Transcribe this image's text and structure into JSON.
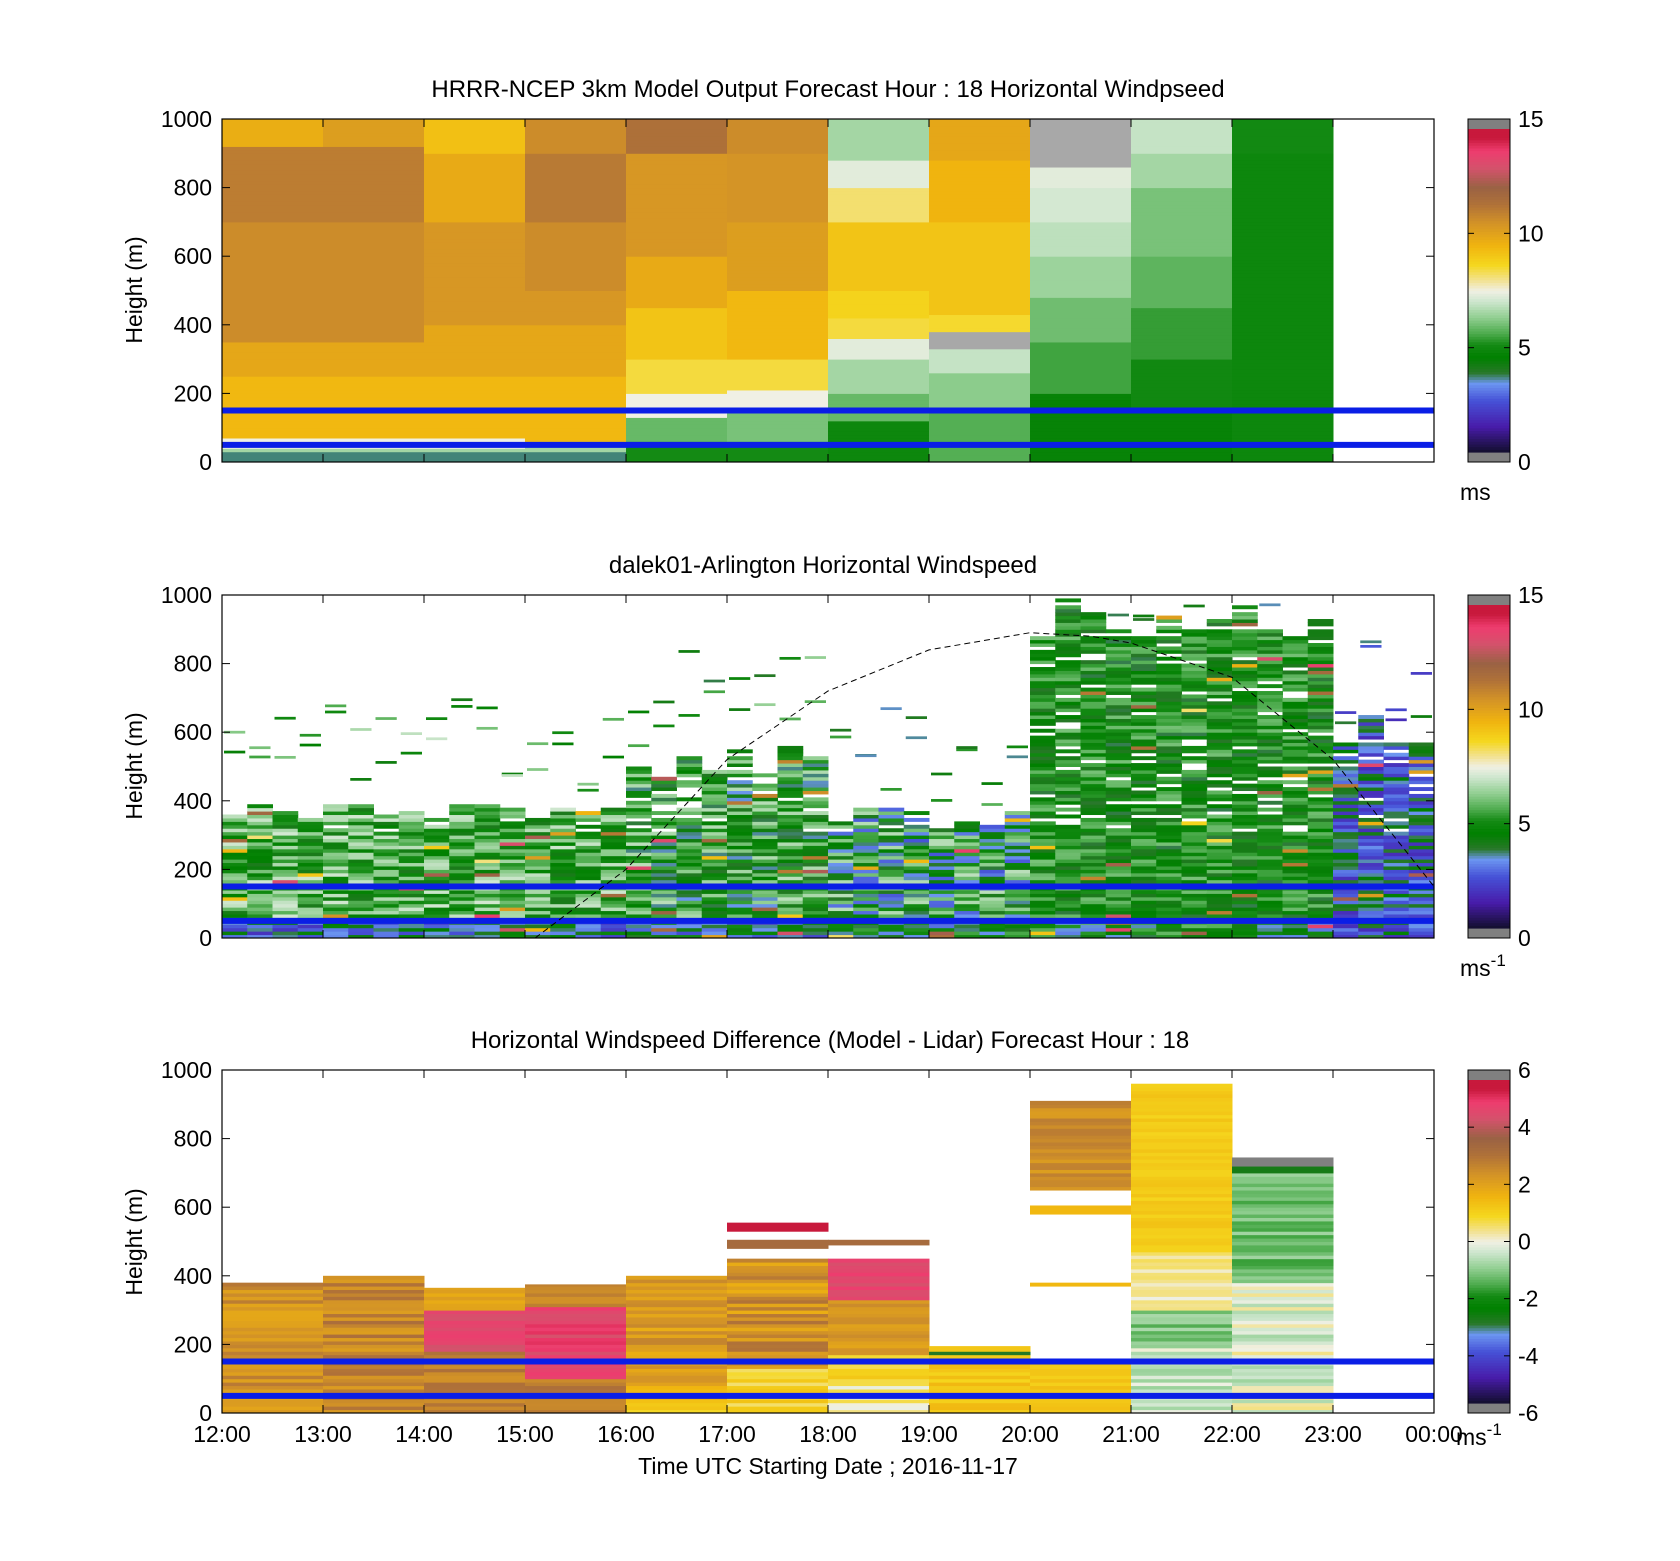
{
  "chart_data": [
    {
      "type": "heatmap",
      "title": "HRRR-NCEP 3km Model Output   Forecast Hour : 18 Horizontal Windpseed",
      "ylabel": "Height (m)",
      "ylim": [
        0,
        1000
      ],
      "yticks": [
        "0",
        "200",
        "400",
        "600",
        "800",
        "1000"
      ],
      "x_hours_range": [
        12,
        24
      ],
      "colorbar": {
        "min": 0,
        "max": 15,
        "ticks": [
          "0",
          "5",
          "10",
          "15"
        ],
        "unit": "ms",
        "unit_sup": ""
      },
      "reference_lines_m": [
        50,
        150
      ],
      "columns": [
        {
          "hour": 12,
          "top": 1000,
          "values": [
            {
              "z": 0,
              "v": 3.5
            },
            {
              "z": 25,
              "v": 6.5
            },
            {
              "z": 40,
              "v": 7.5
            },
            {
              "z": 70,
              "v": 9.5
            },
            {
              "z": 250,
              "v": 10
            },
            {
              "z": 350,
              "v": 10.8
            },
            {
              "z": 700,
              "v": 11.2
            },
            {
              "z": 920,
              "v": 9.8
            }
          ]
        },
        {
          "hour": 13,
          "top": 1000,
          "values": [
            {
              "z": 0,
              "v": 3.5
            },
            {
              "z": 25,
              "v": 6.5
            },
            {
              "z": 40,
              "v": 7.5
            },
            {
              "z": 70,
              "v": 9.5
            },
            {
              "z": 250,
              "v": 10
            },
            {
              "z": 350,
              "v": 10.8
            },
            {
              "z": 700,
              "v": 11.2
            },
            {
              "z": 920,
              "v": 10.3
            }
          ]
        },
        {
          "hour": 14,
          "top": 1000,
          "values": [
            {
              "z": 0,
              "v": 3.5
            },
            {
              "z": 25,
              "v": 6.5
            },
            {
              "z": 40,
              "v": 7.5
            },
            {
              "z": 70,
              "v": 9.5
            },
            {
              "z": 250,
              "v": 10
            },
            {
              "z": 400,
              "v": 10.5
            },
            {
              "z": 700,
              "v": 9.9
            },
            {
              "z": 900,
              "v": 9.3
            }
          ]
        },
        {
          "hour": 15,
          "top": 1000,
          "values": [
            {
              "z": 0,
              "v": 3.5
            },
            {
              "z": 25,
              "v": 6.5
            },
            {
              "z": 55,
              "v": 9.5
            },
            {
              "z": 250,
              "v": 10
            },
            {
              "z": 400,
              "v": 10.5
            },
            {
              "z": 500,
              "v": 10.8
            },
            {
              "z": 700,
              "v": 11.3
            },
            {
              "z": 900,
              "v": 10.8
            }
          ]
        },
        {
          "hour": 16,
          "top": 1000,
          "values": [
            {
              "z": 0,
              "v": 5.0
            },
            {
              "z": 60,
              "v": 5.8
            },
            {
              "z": 130,
              "v": 7.5
            },
            {
              "z": 200,
              "v": 8.5
            },
            {
              "z": 300,
              "v": 9.2
            },
            {
              "z": 450,
              "v": 9.9
            },
            {
              "z": 600,
              "v": 10.5
            },
            {
              "z": 900,
              "v": 11.6
            }
          ]
        },
        {
          "hour": 17,
          "top": 1000,
          "values": [
            {
              "z": 0,
              "v": 5.0
            },
            {
              "z": 60,
              "v": 6.0
            },
            {
              "z": 150,
              "v": 7.5
            },
            {
              "z": 210,
              "v": 8.5
            },
            {
              "z": 300,
              "v": 9.5
            },
            {
              "z": 500,
              "v": 10.3
            },
            {
              "z": 700,
              "v": 10.6
            },
            {
              "z": 900,
              "v": 10.8
            }
          ]
        },
        {
          "hour": 18,
          "top": 1000,
          "values": [
            {
              "z": 0,
              "v": 4.8
            },
            {
              "z": 120,
              "v": 5.8
            },
            {
              "z": 200,
              "v": 6.5
            },
            {
              "z": 300,
              "v": 7.3
            },
            {
              "z": 360,
              "v": 8.5
            },
            {
              "z": 420,
              "v": 8.8
            },
            {
              "z": 500,
              "v": 9.2
            },
            {
              "z": 700,
              "v": 8.2
            },
            {
              "z": 800,
              "v": 7.3
            },
            {
              "z": 880,
              "v": 6.5
            }
          ]
        },
        {
          "hour": 19,
          "top": 1000,
          "values": [
            {
              "z": 0,
              "v": 5.6
            },
            {
              "z": 150,
              "v": 6.2
            },
            {
              "z": 260,
              "v": 6.9
            },
            {
              "z": 330,
              "v": 16
            },
            {
              "z": 380,
              "v": 8.6
            },
            {
              "z": 430,
              "v": 9.2
            },
            {
              "z": 700,
              "v": 9.6
            },
            {
              "z": 880,
              "v": 10.0
            }
          ]
        },
        {
          "hour": 20,
          "top": 1000,
          "values": [
            {
              "z": 0,
              "v": 4.6
            },
            {
              "z": 200,
              "v": 5.4
            },
            {
              "z": 350,
              "v": 5.9
            },
            {
              "z": 480,
              "v": 6.4
            },
            {
              "z": 600,
              "v": 6.8
            },
            {
              "z": 700,
              "v": 7.1
            },
            {
              "z": 800,
              "v": 7.3
            },
            {
              "z": 860,
              "v": 16
            }
          ]
        },
        {
          "hour": 21,
          "top": 1000,
          "values": [
            {
              "z": 0,
              "v": 4.6
            },
            {
              "z": 150,
              "v": 4.9
            },
            {
              "z": 300,
              "v": 5.3
            },
            {
              "z": 450,
              "v": 5.7
            },
            {
              "z": 600,
              "v": 6.0
            },
            {
              "z": 800,
              "v": 6.5
            },
            {
              "z": 900,
              "v": 6.9
            }
          ]
        },
        {
          "hour": 22,
          "top": 1000,
          "values": [
            {
              "z": 0,
              "v": 4.8
            },
            {
              "z": 900,
              "v": 4.95
            },
            {
              "z": 1000,
              "v": 5.3
            }
          ]
        }
      ]
    },
    {
      "type": "heatmap",
      "title": "dalek01-Arlington  Horizontal Windspeed",
      "ylabel": "Height (m)",
      "ylim": [
        0,
        1000
      ],
      "yticks": [
        "0",
        "200",
        "400",
        "600",
        "800",
        "1000"
      ],
      "x_hours_range": [
        12,
        24
      ],
      "colorbar": {
        "min": 0,
        "max": 15,
        "ticks": [
          "0",
          "5",
          "10",
          "15"
        ],
        "unit": "ms",
        "unit_sup": "-1"
      },
      "reference_lines_m": [
        50,
        150
      ],
      "overlay_curve": {
        "description": "dashed boundary-layer height",
        "points": [
          [
            15.1,
            0
          ],
          [
            16,
            200
          ],
          [
            17,
            520
          ],
          [
            18,
            720
          ],
          [
            19,
            840
          ],
          [
            20,
            890
          ],
          [
            20.6,
            880
          ],
          [
            21,
            860
          ],
          [
            22,
            760
          ],
          [
            23,
            520
          ],
          [
            24,
            150
          ]
        ]
      },
      "segments": [
        {
          "h0": 12.0,
          "h1": 16.0,
          "top": 400,
          "base_v": 5.5,
          "spread": 1.6,
          "low_v": 3.2,
          "seed": 11
        },
        {
          "h0": 16.0,
          "h1": 18.0,
          "top": 560,
          "base_v": 5.0,
          "spread": 1.8,
          "low_v": 3.5,
          "seed": 23
        },
        {
          "h0": 18.0,
          "h1": 20.0,
          "top": 380,
          "base_v": 4.6,
          "spread": 2.2,
          "low_v": 4.0,
          "seed": 37
        },
        {
          "h0": 20.0,
          "h1": 23.0,
          "top": 990,
          "base_v": 4.8,
          "spread": 1.2,
          "low_v": 4.3,
          "seed": 41
        },
        {
          "h0": 23.0,
          "h1": 24.0,
          "top": 650,
          "base_v": 3.0,
          "spread": 1.5,
          "low_v": 3.0,
          "seed": 53
        }
      ]
    },
    {
      "type": "heatmap",
      "title": "Horizontal Windspeed Difference (Model - Lidar) Forecast Hour : 18",
      "ylabel": "Height (m)",
      "xlabel": "Time UTC  Starting Date ; 2016-11-17",
      "ylim": [
        0,
        1000
      ],
      "yticks": [
        "0",
        "200",
        "400",
        "600",
        "800",
        "1000"
      ],
      "xticks": [
        "12:00",
        "13:00",
        "14:00",
        "15:00",
        "16:00",
        "17:00",
        "18:00",
        "19:00",
        "20:00",
        "21:00",
        "22:00",
        "23:00",
        "00:00"
      ],
      "x_hours_range": [
        12,
        24
      ],
      "colorbar": {
        "min": -6,
        "max": 6,
        "ticks": [
          "-6",
          "-4",
          "-2",
          "0",
          "2",
          "4",
          "6"
        ],
        "unit": "ms",
        "unit_sup": "-1"
      },
      "reference_lines_m": [
        50,
        150
      ],
      "columns": [
        {
          "hour": 12,
          "bands": [
            {
              "z0": 0,
              "z1": 380,
              "v": 2.6,
              "j": 0.6
            }
          ]
        },
        {
          "hour": 13,
          "bands": [
            {
              "z0": 0,
              "z1": 400,
              "v": 2.8,
              "j": 0.6
            }
          ]
        },
        {
          "hour": 14,
          "bands": [
            {
              "z0": 0,
              "z1": 180,
              "v": 2.9,
              "j": 0.4
            },
            {
              "z0": 180,
              "z1": 300,
              "v": 4.8,
              "j": 0.3
            },
            {
              "z0": 300,
              "z1": 365,
              "v": 2.0,
              "j": 0.3
            }
          ]
        },
        {
          "hour": 15,
          "bands": [
            {
              "z0": 0,
              "z1": 100,
              "v": 3.0,
              "j": 0.4
            },
            {
              "z0": 100,
              "z1": 310,
              "v": 5.0,
              "j": 0.4
            },
            {
              "z0": 310,
              "z1": 375,
              "v": 2.8,
              "j": 0.3
            }
          ]
        },
        {
          "hour": 16,
          "bands": [
            {
              "z0": 0,
              "z1": 80,
              "v": 1.3,
              "j": 0.4
            },
            {
              "z0": 80,
              "z1": 400,
              "v": 2.3,
              "j": 0.5
            }
          ]
        },
        {
          "hour": 17,
          "bands": [
            {
              "z0": 0,
              "z1": 130,
              "v": 1.0,
              "j": 0.5
            },
            {
              "z0": 130,
              "z1": 450,
              "v": 2.5,
              "j": 0.7
            },
            {
              "z0": 480,
              "z1": 505,
              "v": 3.5,
              "j": 0
            },
            {
              "z0": 530,
              "z1": 555,
              "v": 5.8,
              "j": 0
            }
          ]
        },
        {
          "hour": 18,
          "bands": [
            {
              "z0": 0,
              "z1": 100,
              "v": 0.3,
              "j": 0.5
            },
            {
              "z0": 100,
              "z1": 170,
              "v": 1.0,
              "j": 0.3
            },
            {
              "z0": 170,
              "z1": 330,
              "v": 2.4,
              "j": 0.4
            },
            {
              "z0": 330,
              "z1": 450,
              "v": 4.9,
              "j": 0.3
            },
            {
              "z0": 490,
              "z1": 505,
              "v": 3.5,
              "j": 0
            }
          ]
        },
        {
          "hour": 19,
          "bands": [
            {
              "z0": 0,
              "z1": 170,
              "v": 1.3,
              "j": 0.3
            },
            {
              "z0": 170,
              "z1": 180,
              "v": -3.0,
              "j": 0
            },
            {
              "z0": 180,
              "z1": 195,
              "v": 1.3,
              "j": 0
            }
          ]
        },
        {
          "hour": 20,
          "bands": [
            {
              "z0": 0,
              "z1": 150,
              "v": 1.3,
              "j": 0.2
            },
            {
              "z0": 370,
              "z1": 380,
              "v": 1.6,
              "j": 0
            },
            {
              "z0": 580,
              "z1": 605,
              "v": 1.6,
              "j": 0
            },
            {
              "z0": 650,
              "z1": 910,
              "v": 2.6,
              "j": 0.4
            }
          ]
        },
        {
          "hour": 21,
          "bands": [
            {
              "z0": 0,
              "z1": 200,
              "v": -0.5,
              "j": 0.6
            },
            {
              "z0": 200,
              "z1": 300,
              "v": -1.2,
              "j": 0.5
            },
            {
              "z0": 300,
              "z1": 470,
              "v": 0.3,
              "j": 0.4
            },
            {
              "z0": 470,
              "z1": 960,
              "v": 1.2,
              "j": 0.2
            }
          ]
        },
        {
          "hour": 22,
          "bands": [
            {
              "z0": 0,
              "z1": 380,
              "v": -0.2,
              "j": 0.7
            },
            {
              "z0": 380,
              "z1": 700,
              "v": -1.3,
              "j": 0.5
            },
            {
              "z0": 700,
              "z1": 720,
              "v": -2.8,
              "j": 0
            },
            {
              "z0": 720,
              "z1": 745,
              "v": 6.5,
              "j": 0
            }
          ]
        }
      ]
    }
  ]
}
